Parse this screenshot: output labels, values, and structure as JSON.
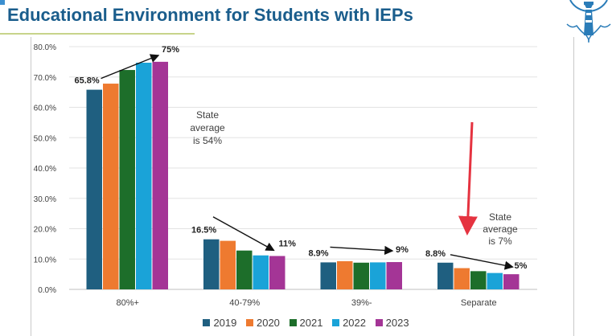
{
  "header": {
    "title": "Educational Environment for Students with IEPs"
  },
  "logo": {
    "icon": "lighthouse-icon",
    "color": "#2a7cb8"
  },
  "chart_data": {
    "type": "bar",
    "title": "Educational Environment for Students with IEPs",
    "xlabel": "",
    "ylabel": "",
    "ylim": [
      0,
      80
    ],
    "yticks": [
      "0.0%",
      "10.0%",
      "20.0%",
      "30.0%",
      "40.0%",
      "50.0%",
      "60.0%",
      "70.0%",
      "80.0%"
    ],
    "grid": true,
    "legend_position": "bottom",
    "categories": [
      "80%+",
      "40-79%",
      "39%-",
      "Separate"
    ],
    "series": [
      {
        "name": "2019",
        "color": "#1f5f80",
        "values": [
          65.8,
          16.5,
          8.9,
          8.8
        ]
      },
      {
        "name": "2020",
        "color": "#ee7a30",
        "values": [
          67.8,
          16.0,
          9.3,
          7.0
        ]
      },
      {
        "name": "2021",
        "color": "#1d6e2a",
        "values": [
          72.3,
          12.8,
          8.8,
          6.0
        ]
      },
      {
        "name": "2022",
        "color": "#1aa3d8",
        "values": [
          74.7,
          11.2,
          8.9,
          5.4
        ]
      },
      {
        "name": "2023",
        "color": "#a43596",
        "values": [
          75.0,
          11.0,
          9.0,
          5.0
        ]
      }
    ],
    "annotations": {
      "start_labels": [
        "65.8%",
        "16.5%",
        "8.9%",
        "8.8%"
      ],
      "end_labels": [
        "75%",
        "11%",
        "9%",
        "5%"
      ],
      "state_note_1": [
        "State",
        "average",
        "is 54%"
      ],
      "state_note_2": [
        "State",
        "average",
        "is 7%"
      ]
    }
  }
}
